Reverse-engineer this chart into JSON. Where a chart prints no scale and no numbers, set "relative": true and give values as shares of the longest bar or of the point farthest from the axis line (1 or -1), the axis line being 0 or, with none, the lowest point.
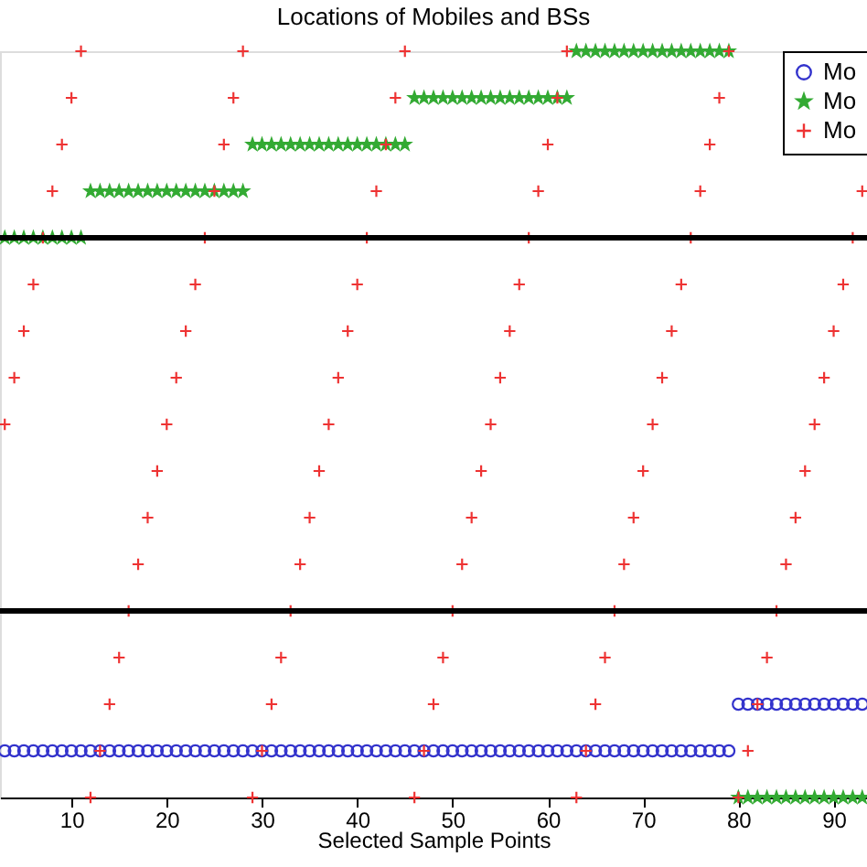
{
  "chart_data": {
    "type": "scatter",
    "title": "Locations of Mobiles and BSs",
    "xlabel": "Selected Sample Points",
    "relative": true,
    "tick_labels": "x",
    "grid": false,
    "legend": "top right",
    "xlim": [
      2.5,
      93.5
    ],
    "xticks": [
      10,
      20,
      30,
      40,
      50,
      60,
      70,
      80,
      90
    ],
    "ref_lines": [
      {
        "axis": "y",
        "value": 0.25,
        "color": "#000000"
      },
      {
        "axis": "y",
        "value": 0.75,
        "color": "#000000"
      }
    ],
    "series": [
      {
        "name": "Mo",
        "color": "#3333cc",
        "marker": "circle",
        "x": [
          3,
          4,
          5,
          6,
          7,
          8,
          9,
          10,
          11,
          12,
          13,
          14,
          15,
          16,
          17,
          18,
          19,
          20,
          21,
          22,
          23,
          24,
          25,
          26,
          27,
          28,
          29,
          30,
          31,
          32,
          33,
          34,
          35,
          36,
          37,
          38,
          39,
          40,
          41,
          42,
          43,
          44,
          45,
          46,
          47,
          48,
          49,
          50,
          51,
          52,
          53,
          54,
          55,
          56,
          57,
          58,
          59,
          60,
          61,
          62,
          63,
          64,
          65,
          66,
          67,
          68,
          69,
          70,
          71,
          72,
          73,
          74,
          75,
          76,
          77,
          78,
          79,
          80,
          81,
          82,
          83,
          84,
          85,
          86,
          87,
          88,
          89,
          90,
          91,
          92,
          93
        ],
        "values": [
          0.0625,
          0.0625,
          0.0625,
          0.0625,
          0.0625,
          0.0625,
          0.0625,
          0.0625,
          0.0625,
          0.0625,
          0.0625,
          0.0625,
          0.0625,
          0.0625,
          0.0625,
          0.0625,
          0.0625,
          0.0625,
          0.0625,
          0.0625,
          0.0625,
          0.0625,
          0.0625,
          0.0625,
          0.0625,
          0.0625,
          0.0625,
          0.0625,
          0.0625,
          0.0625,
          0.0625,
          0.0625,
          0.0625,
          0.0625,
          0.0625,
          0.0625,
          0.0625,
          0.0625,
          0.0625,
          0.0625,
          0.0625,
          0.0625,
          0.0625,
          0.0625,
          0.0625,
          0.0625,
          0.0625,
          0.0625,
          0.0625,
          0.0625,
          0.0625,
          0.0625,
          0.0625,
          0.0625,
          0.0625,
          0.0625,
          0.0625,
          0.0625,
          0.0625,
          0.0625,
          0.0625,
          0.0625,
          0.0625,
          0.0625,
          0.0625,
          0.0625,
          0.0625,
          0.0625,
          0.0625,
          0.0625,
          0.0625,
          0.0625,
          0.0625,
          0.0625,
          0.0625,
          0.0625,
          0.0625,
          0.125,
          0.125,
          0.125,
          0.125,
          0.125,
          0.125,
          0.125,
          0.125,
          0.125,
          0.125,
          0.125,
          0.125,
          0.125,
          0.125
        ]
      },
      {
        "name": "Mo",
        "color": "#33aa33",
        "marker": "star",
        "x": [
          3,
          4,
          5,
          6,
          7,
          8,
          9,
          10,
          11,
          12,
          13,
          14,
          15,
          16,
          17,
          18,
          19,
          20,
          21,
          22,
          23,
          24,
          25,
          26,
          27,
          28,
          29,
          30,
          31,
          32,
          33,
          34,
          35,
          36,
          37,
          38,
          39,
          40,
          41,
          42,
          43,
          44,
          45,
          46,
          47,
          48,
          49,
          50,
          51,
          52,
          53,
          54,
          55,
          56,
          57,
          58,
          59,
          60,
          61,
          62,
          63,
          64,
          65,
          66,
          67,
          68,
          69,
          70,
          71,
          72,
          73,
          74,
          75,
          76,
          77,
          78,
          79,
          80,
          81,
          82,
          83,
          84,
          85,
          86,
          87,
          88,
          89,
          90,
          91,
          92,
          93
        ],
        "values": [
          0.75,
          0.75,
          0.75,
          0.75,
          0.75,
          0.75,
          0.75,
          0.75,
          0.75,
          0.8125,
          0.8125,
          0.8125,
          0.8125,
          0.8125,
          0.8125,
          0.8125,
          0.8125,
          0.8125,
          0.8125,
          0.8125,
          0.8125,
          0.8125,
          0.8125,
          0.8125,
          0.8125,
          0.8125,
          0.875,
          0.875,
          0.875,
          0.875,
          0.875,
          0.875,
          0.875,
          0.875,
          0.875,
          0.875,
          0.875,
          0.875,
          0.875,
          0.875,
          0.875,
          0.875,
          0.875,
          0.9375,
          0.9375,
          0.9375,
          0.9375,
          0.9375,
          0.9375,
          0.9375,
          0.9375,
          0.9375,
          0.9375,
          0.9375,
          0.9375,
          0.9375,
          0.9375,
          0.9375,
          0.9375,
          0.9375,
          1,
          1,
          1,
          1,
          1,
          1,
          1,
          1,
          1,
          1,
          1,
          1,
          1,
          1,
          1,
          1,
          1,
          0,
          0,
          0,
          0,
          0,
          0,
          0,
          0,
          0,
          0,
          0,
          0,
          0,
          0
        ]
      },
      {
        "name": "Mo",
        "color": "#ee3333",
        "marker": "cross",
        "x": [
          12,
          29,
          46,
          63,
          80,
          13,
          30,
          47,
          64,
          81,
          14,
          31,
          48,
          65,
          82,
          15,
          32,
          49,
          66,
          83,
          16,
          33,
          50,
          67,
          84,
          17,
          34,
          51,
          68,
          85,
          18,
          35,
          52,
          69,
          86,
          19,
          36,
          53,
          70,
          87,
          3,
          20,
          37,
          54,
          71,
          88,
          4,
          21,
          38,
          55,
          72,
          89,
          5,
          22,
          39,
          56,
          73,
          90,
          6,
          23,
          40,
          57,
          74,
          91,
          7,
          24,
          41,
          58,
          75,
          92,
          8,
          25,
          42,
          59,
          76,
          93,
          9,
          26,
          43,
          60,
          77,
          10,
          27,
          44,
          61,
          78,
          11,
          28,
          45,
          62,
          79
        ],
        "values": [
          0,
          0,
          0,
          0,
          0,
          0.0625,
          0.0625,
          0.0625,
          0.0625,
          0.0625,
          0.125,
          0.125,
          0.125,
          0.125,
          0.125,
          0.1875,
          0.1875,
          0.1875,
          0.1875,
          0.1875,
          0.25,
          0.25,
          0.25,
          0.25,
          0.25,
          0.3125,
          0.3125,
          0.3125,
          0.3125,
          0.3125,
          0.375,
          0.375,
          0.375,
          0.375,
          0.375,
          0.4375,
          0.4375,
          0.4375,
          0.4375,
          0.4375,
          0.5,
          0.5,
          0.5,
          0.5,
          0.5,
          0.5,
          0.5625,
          0.5625,
          0.5625,
          0.5625,
          0.5625,
          0.5625,
          0.625,
          0.625,
          0.625,
          0.625,
          0.625,
          0.625,
          0.6875,
          0.6875,
          0.6875,
          0.6875,
          0.6875,
          0.6875,
          0.75,
          0.75,
          0.75,
          0.75,
          0.75,
          0.75,
          0.8125,
          0.8125,
          0.8125,
          0.8125,
          0.8125,
          0.8125,
          0.875,
          0.875,
          0.875,
          0.875,
          0.875,
          0.9375,
          0.9375,
          0.9375,
          0.9375,
          0.9375,
          1,
          1,
          1,
          1,
          1
        ]
      }
    ]
  }
}
